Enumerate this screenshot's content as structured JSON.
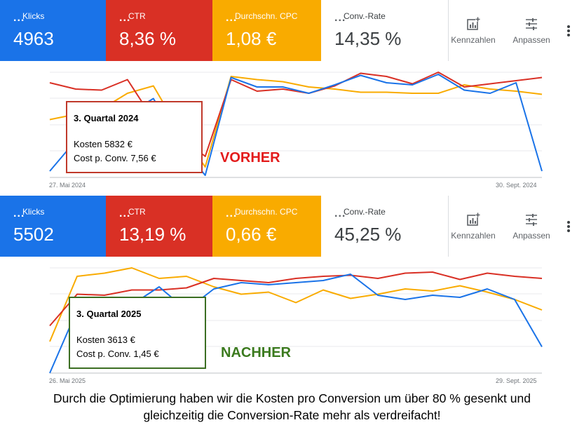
{
  "before": {
    "kpis": [
      {
        "label": "Klicks",
        "value": "4963",
        "color": "#1a73e8"
      },
      {
        "label": "CTR",
        "value": "8,36 %",
        "color": "#d93025"
      },
      {
        "label": "Durchschn. CPC",
        "value": "1,08 €",
        "color": "#f9ab00"
      },
      {
        "label": "Conv.-Rate",
        "value": "14,35 %",
        "color": "#ffffff"
      }
    ],
    "tools": {
      "metrics_label": "Kennzahlen",
      "adjust_label": "Anpassen"
    },
    "date_start": "27. Mai 2024",
    "date_end": "30. Sept. 2024",
    "callout": {
      "quarter": "3. Quartal 2024",
      "cost": "Kosten 5832 €",
      "cost_per_conv": "Cost p. Conv. 7,56 €"
    },
    "stamp": "VORHER",
    "stamp_color": "#e31b1b",
    "callout_border": "#c0392b",
    "series": {
      "clicks": [
        0.06,
        0.35,
        0.55,
        0.6,
        0.75,
        0.33,
        0.02,
        0.95,
        0.86,
        0.86,
        0.8,
        0.88,
        0.97,
        0.9,
        0.88,
        0.98,
        0.83,
        0.8,
        0.9,
        0.06
      ],
      "ctr": [
        0.9,
        0.84,
        0.83,
        0.93,
        0.55,
        0.4,
        0.2,
        0.93,
        0.82,
        0.84,
        0.8,
        0.87,
        0.99,
        0.96,
        0.89,
        1.0,
        0.86,
        0.89,
        0.92,
        0.95
      ],
      "cpc": [
        0.55,
        0.6,
        0.65,
        0.8,
        0.87,
        0.45,
        0.1,
        0.96,
        0.93,
        0.91,
        0.86,
        0.84,
        0.81,
        0.81,
        0.8,
        0.8,
        0.88,
        0.84,
        0.82,
        0.79
      ]
    }
  },
  "after": {
    "kpis": [
      {
        "label": "Klicks",
        "value": "5502",
        "color": "#1a73e8"
      },
      {
        "label": "CTR",
        "value": "13,19 %",
        "color": "#d93025"
      },
      {
        "label": "Durchschn. CPC",
        "value": "0,66 €",
        "color": "#f9ab00"
      },
      {
        "label": "Conv.-Rate",
        "value": "45,25 %",
        "color": "#ffffff"
      }
    ],
    "tools": {
      "metrics_label": "Kennzahlen",
      "adjust_label": "Anpassen"
    },
    "date_start": "26. Mai 2025",
    "date_end": "29. Sept. 2025",
    "callout": {
      "quarter": "3. Quartal 2025",
      "cost": "Kosten 3613 €",
      "cost_per_conv": "Cost p. Conv. 1,45 €"
    },
    "stamp": "NACHHER",
    "stamp_color": "#3b7a1e",
    "callout_border": "#3b6e22",
    "series": {
      "clicks": [
        0.0,
        0.6,
        0.68,
        0.65,
        0.82,
        0.6,
        0.8,
        0.86,
        0.84,
        0.86,
        0.88,
        0.94,
        0.74,
        0.7,
        0.74,
        0.72,
        0.8,
        0.7,
        0.25
      ],
      "ctr": [
        0.45,
        0.75,
        0.74,
        0.79,
        0.79,
        0.81,
        0.9,
        0.88,
        0.86,
        0.9,
        0.92,
        0.93,
        0.9,
        0.95,
        0.96,
        0.89,
        0.95,
        0.92,
        0.9
      ],
      "cpc": [
        0.3,
        0.92,
        0.95,
        1.0,
        0.9,
        0.92,
        0.82,
        0.75,
        0.77,
        0.67,
        0.79,
        0.71,
        0.75,
        0.8,
        0.78,
        0.83,
        0.77,
        0.7,
        0.6
      ]
    }
  },
  "footer": {
    "line1": "Durch die Optimierung haben wir die Kosten pro Conversion um über 80 % gesenkt und",
    "line2": "gleichzeitig die Conversion-Rate mehr als verdreifacht!"
  }
}
